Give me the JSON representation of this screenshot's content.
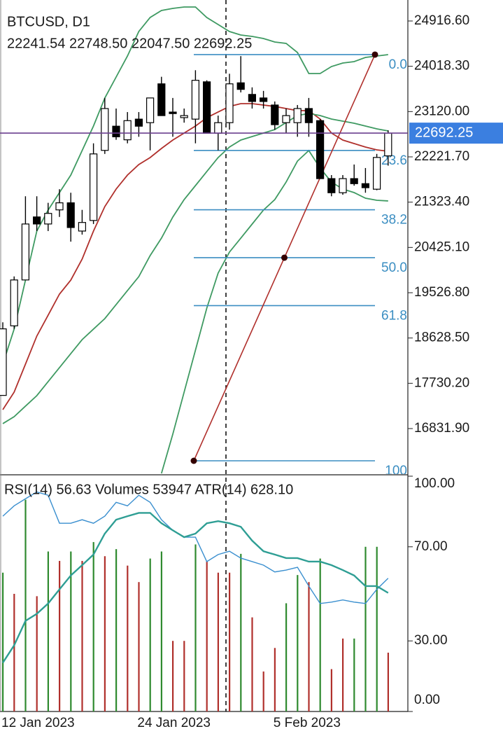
{
  "chart_data": [
    {
      "type": "candlestick",
      "title": "BTCUSD, D1",
      "ohlc_text": "22241.54 22748.50 22047.50 22692.25",
      "categories": [
        "12 Jan 2023",
        null,
        null,
        null,
        null,
        null,
        null,
        null,
        null,
        null,
        null,
        null,
        "24 Jan 2023",
        null,
        null,
        null,
        null,
        null,
        null,
        null,
        null,
        null,
        null,
        null,
        "5 Feb 2023",
        null,
        null,
        null,
        null,
        null,
        null,
        null,
        null,
        null,
        null
      ],
      "open": [
        17490,
        18870,
        19780,
        21030,
        20890,
        21170,
        21310,
        20750,
        20960,
        22350,
        22830,
        22560,
        22970,
        22900,
        23670,
        23110,
        23000,
        22970,
        23710,
        22690,
        22900,
        23690,
        23460,
        23390,
        23250,
        22900,
        22900,
        23180,
        22940,
        21790,
        21510,
        21790,
        21690,
        21580,
        22241.54
      ],
      "high": [
        18940,
        19850,
        21440,
        21440,
        21310,
        21580,
        21510,
        21170,
        22490,
        23390,
        23180,
        23110,
        23110,
        23390,
        23810,
        23390,
        23180,
        23940,
        23740,
        23040,
        23870,
        24220,
        23600,
        23530,
        23320,
        23180,
        23250,
        23390,
        22970,
        21860,
        21860,
        22070,
        22000,
        22280,
        22748.5
      ],
      "low": [
        17490,
        18810,
        19780,
        20750,
        20750,
        21030,
        20540,
        20680,
        20890,
        22280,
        22560,
        22490,
        22620,
        22350,
        23040,
        22620,
        22900,
        22490,
        22690,
        22350,
        22760,
        23500,
        23180,
        23180,
        22760,
        22690,
        22620,
        22620,
        21790,
        21440,
        21470,
        21650,
        21510,
        21560,
        22047.5
      ],
      "close": [
        18810,
        19780,
        20890,
        20890,
        21100,
        21310,
        20820,
        20920,
        22280,
        23180,
        22620,
        22940,
        22830,
        23390,
        23040,
        23080,
        23040,
        23740,
        22690,
        22900,
        23670,
        23560,
        23320,
        23320,
        22860,
        23040,
        23180,
        22900,
        21790,
        21510,
        21790,
        21690,
        21610,
        22210,
        22692.25
      ],
      "up_color": "#ffffff",
      "down_color": "#000000",
      "price_line_color": "#6b3f8f",
      "price_label_color": "#3b7fe0",
      "lines": [
        {
          "color": "#3f9a62",
          "values": [
            18110,
            18805,
            19777,
            20749,
            21166,
            21513,
            21860,
            22347,
            22833,
            23388,
            23805,
            24222,
            24708,
            24986,
            25125,
            25166,
            25194,
            25194,
            24986,
            24847,
            24708,
            24638,
            24611,
            24569,
            24500,
            24472,
            24291,
            23875,
            23875,
            24013,
            24083,
            24111,
            24194,
            24222,
            24250
          ]
        },
        {
          "color": "#b0302c",
          "values": [
            17207,
            17555,
            18110,
            18666,
            19082,
            19499,
            19777,
            20194,
            20749,
            21235,
            21583,
            21860,
            22069,
            22208,
            22388,
            22555,
            22694,
            22833,
            22999,
            23111,
            23222,
            23277,
            23277,
            23249,
            23222,
            23180,
            23138,
            23138,
            22972,
            22694,
            22555,
            22486,
            22416,
            22361,
            22333
          ]
        },
        {
          "color": "#3f9a62",
          "values": [
            16930,
            17068,
            17277,
            17485,
            17763,
            18041,
            18319,
            18596,
            18805,
            19013,
            19291,
            19569,
            19846,
            20263,
            20610,
            21027,
            21374,
            21652,
            21930,
            22208,
            22416,
            22555,
            22624,
            22694,
            22763,
            22902,
            23041,
            23083,
            23041,
            22972,
            22930,
            22888,
            22833,
            22777,
            22736
          ]
        },
        {
          "color": "#3f9a62",
          "values": [
            null,
            null,
            null,
            null,
            null,
            null,
            null,
            null,
            null,
            null,
            null,
            null,
            null,
            null,
            15943,
            16721,
            17555,
            18388,
            19221,
            19916,
            20333,
            20610,
            20888,
            21166,
            21374,
            21722,
            22138,
            22347,
            21999,
            21722,
            21583,
            21513,
            21402,
            21360,
            21347
          ]
        }
      ],
      "fibonacci": {
        "high": 24250,
        "low": 16193,
        "color": "#3b8ec2",
        "line_color": "#b0302c",
        "levels": [
          {
            "value": 0,
            "label": "0.0"
          },
          23.6,
          38.2,
          {
            "value": 50,
            "label": "50.0"
          },
          61.8,
          100
        ]
      },
      "ylim": [
        15943,
        25333
      ],
      "yticks": [
        {
          "value": 24916.6,
          "label": "24916.60"
        },
        {
          "value": 24018.3,
          "label": "24018.30"
        },
        {
          "value": 23120,
          "label": "23120.00"
        },
        {
          "value": 22221.7,
          "label": "22221.70"
        },
        {
          "value": 21323.4,
          "label": "21323.40"
        },
        {
          "value": 20425.1,
          "label": "20425.10"
        },
        {
          "value": 19526.8,
          "label": "19526.80"
        },
        {
          "value": 18628.5,
          "label": "18628.50"
        },
        {
          "value": 17730.2,
          "label": "17730.20"
        },
        {
          "value": 16831.9,
          "label": "16831.90"
        }
      ]
    },
    {
      "type": "indicator",
      "title": "RSI(14) 56.63 Volumes 53947 ATR(14) 628.10",
      "volumes": {
        "values": [
          59,
          50,
          90,
          49,
          68,
          64,
          68,
          64,
          72,
          66,
          69,
          62,
          55,
          65,
          68,
          30,
          30,
          71,
          64,
          59,
          59,
          67,
          40,
          17,
          27,
          46,
          58,
          55,
          65,
          18,
          31,
          31,
          70,
          70,
          25
        ],
        "colors": [
          "#2f8a2f",
          "#b0302c",
          "#2f8a2f",
          "#b0302c",
          "#2f8a2f",
          "#b0302c",
          "#2f8a2f",
          "#b0302c",
          "#2f8a2f",
          "#b0302c",
          "#2f8a2f",
          "#b0302c",
          "#b0302c",
          "#2f8a2f",
          "#2f8a2f",
          "#b0302c",
          "#b0302c",
          "#2f8a2f",
          "#b0302c",
          "#b0302c",
          "#b0302c",
          "#2f8a2f",
          "#b0302c",
          "#b0302c",
          "#b0302c",
          "#2f8a2f",
          "#2f8a2f",
          "#b0302c",
          "#2f8a2f",
          "#b0302c",
          "#b0302c",
          "#2f8a2f",
          "#2f8a2f",
          "#2f8a2f",
          "#b0302c"
        ]
      },
      "lines": [
        {
          "color": "#3a8fcf",
          "width": 1.4,
          "values": [
            83,
            87.4,
            90.4,
            93.3,
            91.9,
            80,
            80,
            81.5,
            80,
            83,
            88.9,
            87.4,
            91.9,
            88.9,
            81.5,
            77,
            74.1,
            74.1,
            63.7,
            66.7,
            68.1,
            65.2,
            63.7,
            62.2,
            59.3,
            60.1,
            61.3,
            53.3,
            45.9,
            46.5,
            47.4,
            46.5,
            45.9,
            51.9,
            56.63
          ]
        },
        {
          "color": "#2e9e94",
          "width": 2.4,
          "values": [
            20.7,
            28.1,
            38.5,
            41.5,
            45.9,
            51.9,
            57.8,
            62.2,
            66.7,
            75.6,
            81.5,
            83,
            84.4,
            84.4,
            80,
            77,
            74.1,
            75.6,
            80,
            80.9,
            80,
            78.5,
            72.6,
            68.1,
            66.7,
            65.2,
            65.2,
            63.7,
            63.7,
            62.2,
            60.1,
            57.8,
            53.3,
            53.3,
            50.4
          ]
        }
      ],
      "ylim": [
        0,
        100
      ],
      "yticks": [
        {
          "value": 100,
          "label": "100.00"
        },
        {
          "value": 70,
          "label": "70.00"
        },
        {
          "value": 30,
          "label": "30.00"
        },
        {
          "value": 0,
          "label": "0.00"
        }
      ]
    }
  ]
}
